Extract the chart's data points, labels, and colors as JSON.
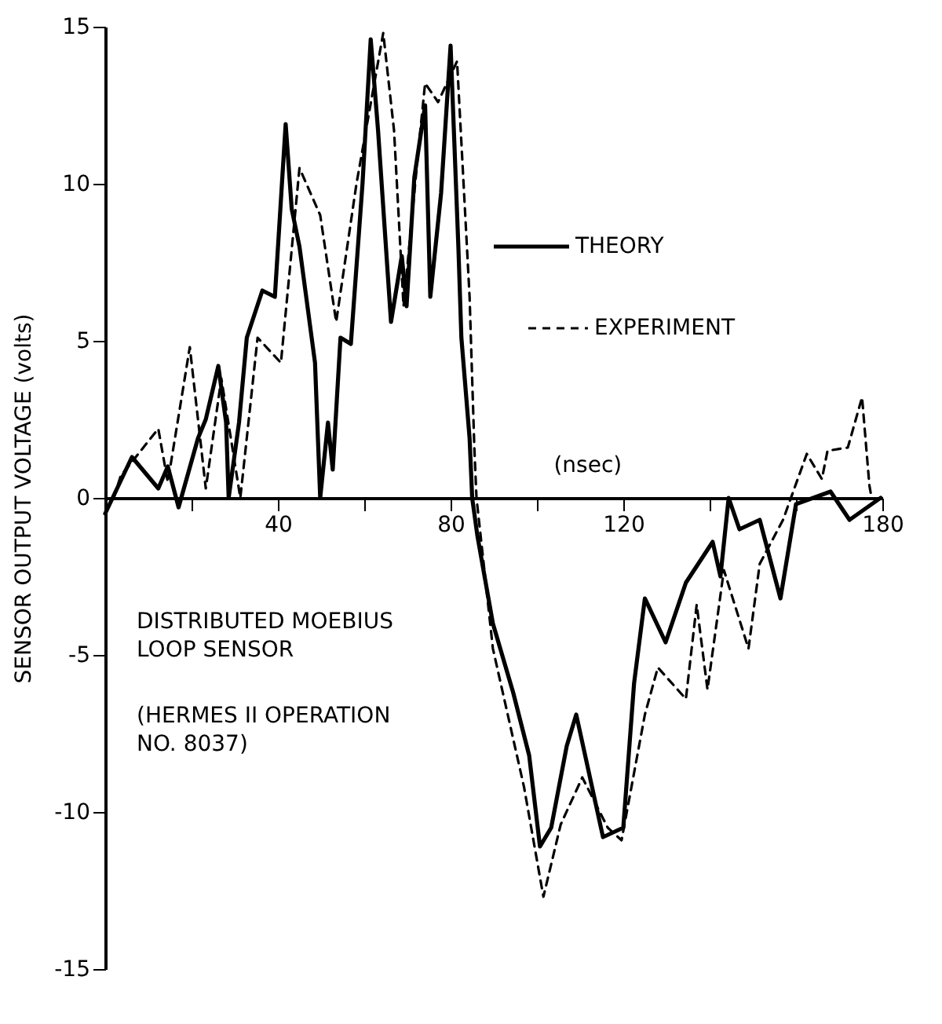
{
  "chart_data": {
    "type": "line",
    "xlabel": "(nsec)",
    "ylabel": "SENSOR OUTPUT VOLTAGE (volts)",
    "xlim": [
      0,
      180
    ],
    "ylim": [
      -15,
      15
    ],
    "xticks": [
      {
        "value": 20,
        "label": null
      },
      40,
      {
        "value": 60,
        "label": null
      },
      80,
      {
        "value": 100,
        "label": null
      },
      120,
      {
        "value": 140,
        "label": null
      },
      {
        "value": 160,
        "label": null
      },
      180
    ],
    "yticks": [
      -15,
      -10,
      -5,
      0,
      5,
      10,
      15
    ],
    "grid": false,
    "legend": "right",
    "marker": "none",
    "annotations": [
      "DISTRIBUTED MOEBIUS\nLOOP SENSOR",
      "(HERMES II OPERATION\nNO. 8037)"
    ],
    "series": [
      {
        "name": "THEORY",
        "color": "#000000",
        "line_style": "solid",
        "x": [
          0,
          6.2,
          12.3,
          14.5,
          17,
          21.5,
          23.3,
          26.2,
          28,
          28.6,
          31,
          32.8,
          36.4,
          39.3,
          41.8,
          43.2,
          45,
          48.6,
          49.8,
          51.6,
          52.7,
          54.5,
          56.9,
          59.6,
          61.5,
          63.2,
          66.2,
          68.7,
          69.8,
          71.6,
          74.1,
          75.3,
          77.8,
          80,
          81.8,
          82.5,
          84.4,
          85,
          86.2,
          89.8,
          94.5,
          98.2,
          100.7,
          103.3,
          106.9,
          109.1,
          115.3,
          120,
          122.5,
          125,
          129.8,
          134.5,
          140.7,
          142.5,
          144.4,
          146.9,
          151.6,
          156.4,
          160,
          168,
          172.4,
          179.6
        ],
        "values": [
          -0.5,
          1.3,
          0.3,
          1.0,
          -0.3,
          1.9,
          2.5,
          4.2,
          2.4,
          0,
          2.4,
          5.1,
          6.6,
          6.4,
          11.9,
          9.2,
          8.0,
          4.3,
          0,
          2.4,
          0.9,
          5.1,
          4.9,
          10,
          14.6,
          11.7,
          5.6,
          7.7,
          6.1,
          10.2,
          12.5,
          6.4,
          9.7,
          14.4,
          8.0,
          5.1,
          1.9,
          0,
          -1.2,
          -4.0,
          -6.2,
          -8.2,
          -11.1,
          -10.5,
          -7.9,
          -6.9,
          -10.8,
          -10.5,
          -5.9,
          -3.2,
          -4.6,
          -2.7,
          -1.4,
          -2.5,
          0,
          -1.0,
          -0.7,
          -3.2,
          -0.2,
          0.2,
          -0.7,
          0
        ]
      },
      {
        "name": "EXPERIMENT",
        "color": "#000000",
        "line_style": "dashed",
        "x": [
          2,
          3.6,
          12.3,
          14.5,
          19.6,
          23.3,
          26.9,
          31.3,
          35.3,
          40.7,
          45,
          49.8,
          53.5,
          58.2,
          64.4,
          66.9,
          69.1,
          72.7,
          74.1,
          77.1,
          81.5,
          84.4,
          85.5,
          86,
          89.8,
          97,
          101.5,
          105.5,
          110.5,
          116.4,
          119.6,
          125,
          128,
          134.5,
          137,
          139.5,
          143.3,
          149,
          151.6,
          157,
          162.5,
          166,
          167.3,
          172,
          175.3,
          177,
          177.5
        ],
        "values": [
          0,
          0.7,
          2.2,
          0.5,
          4.8,
          0.3,
          3.8,
          0,
          5.1,
          4.3,
          10.5,
          9.0,
          5.6,
          10,
          14.8,
          11.7,
          6.1,
          11.3,
          13.2,
          12.6,
          13.9,
          6.4,
          1.6,
          0,
          -4.8,
          -9.2,
          -12.7,
          -10.4,
          -8.9,
          -10.5,
          -10.9,
          -6.9,
          -5.4,
          -6.4,
          -3.4,
          -6.1,
          -2.3,
          -4.8,
          -2.1,
          -0.7,
          1.4,
          0.6,
          1.5,
          1.6,
          3.2,
          0.4,
          0
        ]
      }
    ]
  }
}
